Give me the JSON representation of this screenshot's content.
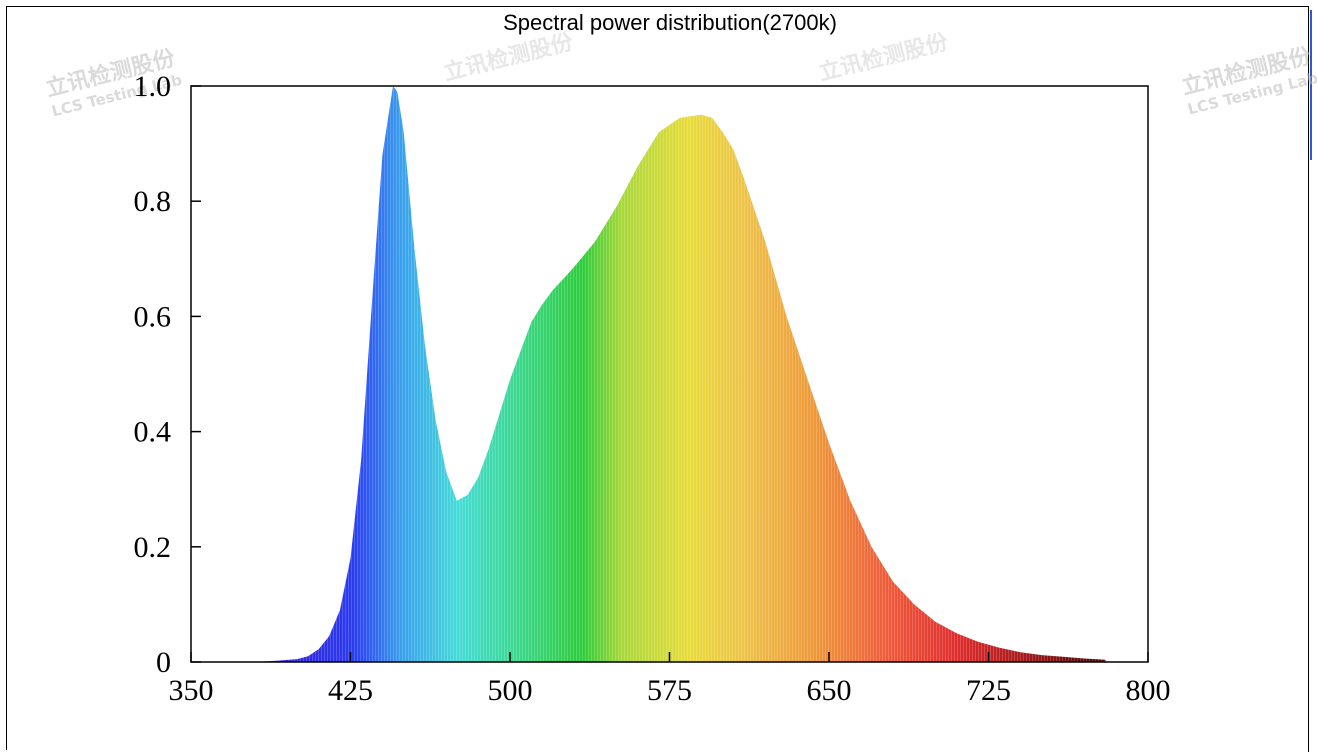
{
  "chart_data": {
    "type": "area",
    "title": "Spectral power distribution(2700k)",
    "xlabel": "",
    "ylabel": "",
    "xlim": [
      350,
      800
    ],
    "ylim": [
      0,
      1.0
    ],
    "xticks": [
      "350",
      "425",
      "500",
      "575",
      "650",
      "725",
      "800"
    ],
    "yticks": [
      "0",
      "0.2",
      "0.4",
      "0.6",
      "0.8",
      "1.0"
    ],
    "grid": false,
    "legend": "none",
    "x": [
      380,
      390,
      400,
      405,
      410,
      415,
      420,
      425,
      430,
      435,
      440,
      445,
      447,
      450,
      455,
      460,
      465,
      470,
      475,
      480,
      485,
      490,
      495,
      500,
      505,
      510,
      515,
      520,
      525,
      530,
      540,
      550,
      560,
      570,
      580,
      590,
      595,
      600,
      605,
      610,
      620,
      630,
      640,
      650,
      660,
      670,
      680,
      690,
      700,
      710,
      720,
      730,
      740,
      750,
      760,
      770,
      780
    ],
    "values": [
      0.0,
      0.002,
      0.005,
      0.01,
      0.022,
      0.045,
      0.09,
      0.18,
      0.35,
      0.62,
      0.88,
      1.0,
      0.99,
      0.92,
      0.72,
      0.55,
      0.42,
      0.33,
      0.28,
      0.29,
      0.32,
      0.37,
      0.43,
      0.49,
      0.54,
      0.59,
      0.62,
      0.645,
      0.665,
      0.685,
      0.73,
      0.79,
      0.86,
      0.92,
      0.945,
      0.95,
      0.945,
      0.92,
      0.89,
      0.84,
      0.73,
      0.6,
      0.49,
      0.38,
      0.28,
      0.2,
      0.14,
      0.1,
      0.07,
      0.05,
      0.035,
      0.025,
      0.017,
      0.012,
      0.009,
      0.006,
      0.004
    ]
  },
  "watermarks": [
    {
      "cn": "立讯检测股份",
      "en": "LCS Testing Lab"
    },
    {
      "cn": "立讯检测股份",
      "en": "LCS Testing Lab"
    },
    {
      "cn": "立讯检测股份",
      "en": "LCS Testing Lab"
    },
    {
      "cn": "立讯检测股份",
      "en": "LCS Testing Lab"
    },
    {
      "cn": "立讯检测股份",
      "en": "LCS Testing Lab"
    }
  ]
}
